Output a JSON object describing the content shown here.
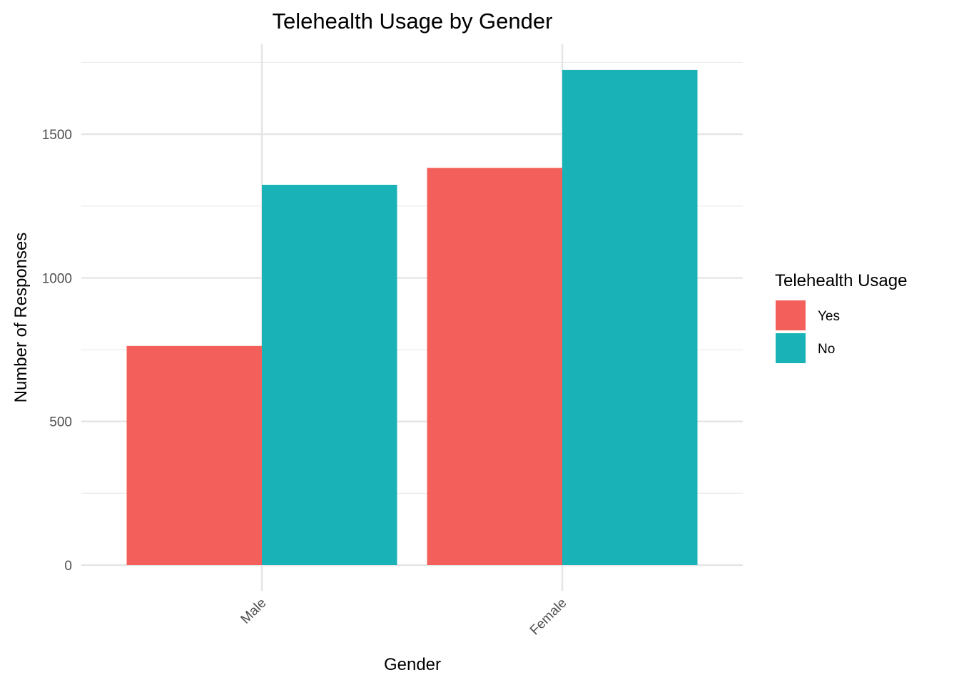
{
  "chart_data": {
    "type": "bar",
    "title": "Telehealth Usage by Gender",
    "xlabel": "Gender",
    "ylabel": "Number of Responses",
    "categories": [
      "Male",
      "Female"
    ],
    "series": [
      {
        "name": "Yes",
        "color": "#F3605C",
        "values": [
          763,
          1383
        ]
      },
      {
        "name": "No",
        "color": "#19B3B7",
        "values": [
          1324,
          1724
        ]
      }
    ],
    "ylim": [
      0,
      1750
    ],
    "yticks": [
      0,
      500,
      1000,
      1500
    ],
    "yticks_labels": [
      "0",
      "500",
      "1000",
      "1500"
    ],
    "grid": true,
    "legend": {
      "title": "Telehealth Usage",
      "position": "right"
    }
  }
}
